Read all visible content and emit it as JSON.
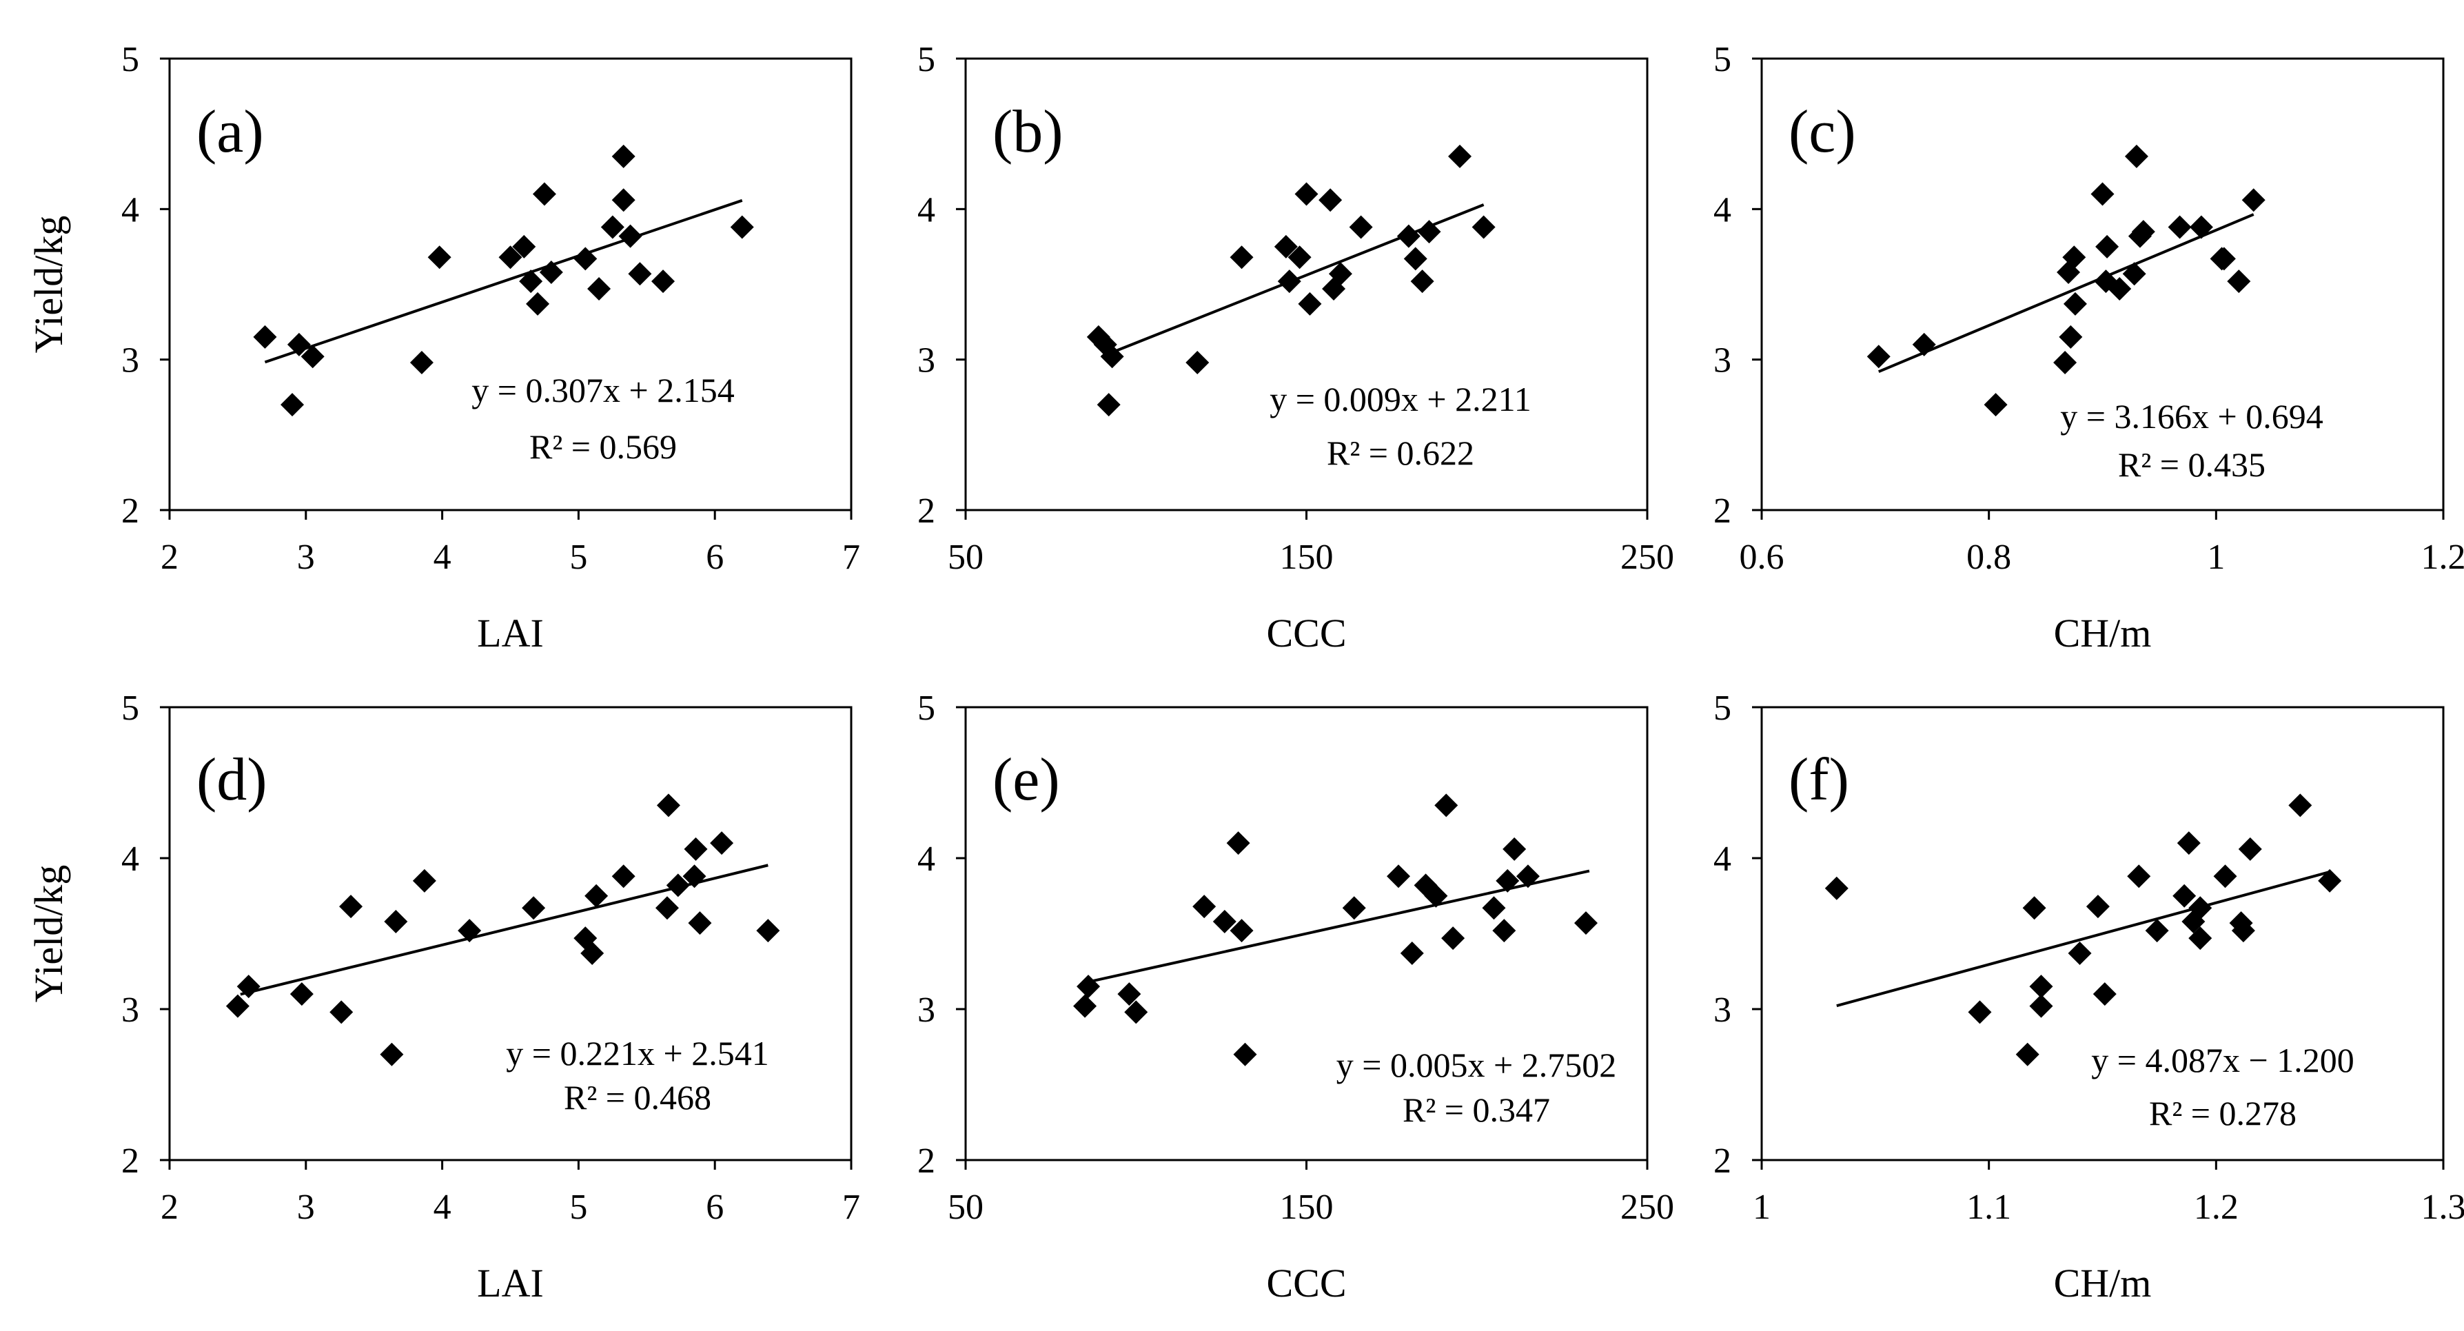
{
  "figure": {
    "y_axis_label": "Yield/kg",
    "colors": {
      "marker": "#000000",
      "trendline": "#000000",
      "frame": "#000000",
      "background": "#ffffff"
    }
  },
  "chart_data": [
    {
      "type": "scatter",
      "panel_label": "(a)",
      "xlabel": "LAI",
      "ylabel": "Yield/kg",
      "xlim": [
        2,
        7
      ],
      "ylim": [
        2,
        5
      ],
      "x_ticks": [
        "2",
        "3",
        "4",
        "5",
        "6",
        "7"
      ],
      "y_ticks": [
        "2",
        "3",
        "4",
        "5"
      ],
      "points": [
        {
          "x": 2.7,
          "y": 3.15
        },
        {
          "x": 2.9,
          "y": 2.7
        },
        {
          "x": 2.95,
          "y": 3.1
        },
        {
          "x": 3.05,
          "y": 3.02
        },
        {
          "x": 3.85,
          "y": 2.98
        },
        {
          "x": 3.98,
          "y": 3.68
        },
        {
          "x": 4.5,
          "y": 3.68
        },
        {
          "x": 4.6,
          "y": 3.75
        },
        {
          "x": 4.65,
          "y": 3.52
        },
        {
          "x": 4.7,
          "y": 3.37
        },
        {
          "x": 4.75,
          "y": 4.1
        },
        {
          "x": 4.8,
          "y": 3.58
        },
        {
          "x": 5.05,
          "y": 3.67
        },
        {
          "x": 5.15,
          "y": 3.47
        },
        {
          "x": 5.25,
          "y": 3.88
        },
        {
          "x": 5.33,
          "y": 4.35
        },
        {
          "x": 5.33,
          "y": 4.06
        },
        {
          "x": 5.38,
          "y": 3.82
        },
        {
          "x": 5.45,
          "y": 3.57
        },
        {
          "x": 5.62,
          "y": 3.52
        },
        {
          "x": 6.2,
          "y": 3.88
        }
      ],
      "trendline": {
        "x_start": 2.7,
        "x_end": 6.2,
        "slope": 0.307,
        "intercept": 2.154
      },
      "equation": "y = 0.307x + 2.154",
      "r_squared": "R² = 0.569"
    },
    {
      "type": "scatter",
      "panel_label": "(b)",
      "xlabel": "CCC",
      "ylabel": "Yield/kg",
      "xlim": [
        50,
        250
      ],
      "ylim": [
        2,
        5
      ],
      "x_ticks": [
        "50",
        "150",
        "250"
      ],
      "y_ticks": [
        "2",
        "3",
        "4",
        "5"
      ],
      "points": [
        {
          "x": 89,
          "y": 3.15
        },
        {
          "x": 91,
          "y": 3.1
        },
        {
          "x": 92,
          "y": 2.7
        },
        {
          "x": 93,
          "y": 3.02
        },
        {
          "x": 118,
          "y": 2.98
        },
        {
          "x": 131,
          "y": 3.68
        },
        {
          "x": 144,
          "y": 3.75
        },
        {
          "x": 145,
          "y": 3.52
        },
        {
          "x": 148,
          "y": 3.68
        },
        {
          "x": 150,
          "y": 4.1
        },
        {
          "x": 151,
          "y": 3.37
        },
        {
          "x": 157,
          "y": 4.06
        },
        {
          "x": 158,
          "y": 3.47
        },
        {
          "x": 160,
          "y": 3.57
        },
        {
          "x": 166,
          "y": 3.88
        },
        {
          "x": 180,
          "y": 3.82
        },
        {
          "x": 182,
          "y": 3.67
        },
        {
          "x": 184,
          "y": 3.52
        },
        {
          "x": 186,
          "y": 3.85
        },
        {
          "x": 195,
          "y": 4.35
        },
        {
          "x": 202,
          "y": 3.88
        }
      ],
      "trendline": {
        "x_start": 90,
        "x_end": 202,
        "slope": 0.009,
        "intercept": 2.211
      },
      "equation": "y = 0.009x + 2.211",
      "r_squared": "R² = 0.622"
    },
    {
      "type": "scatter",
      "panel_label": "(c)",
      "xlabel": "CH/m",
      "ylabel": "Yield/kg",
      "xlim": [
        0.6,
        1.2
      ],
      "ylim": [
        2,
        5
      ],
      "x_ticks": [
        "0.6",
        "0.8",
        "1",
        "1.2"
      ],
      "y_ticks": [
        "2",
        "3",
        "4",
        "5"
      ],
      "points": [
        {
          "x": 0.703,
          "y": 3.02
        },
        {
          "x": 0.743,
          "y": 3.1
        },
        {
          "x": 0.806,
          "y": 2.7
        },
        {
          "x": 0.867,
          "y": 2.98
        },
        {
          "x": 0.87,
          "y": 3.58
        },
        {
          "x": 0.872,
          "y": 3.15
        },
        {
          "x": 0.875,
          "y": 3.68
        },
        {
          "x": 0.876,
          "y": 3.37
        },
        {
          "x": 0.9,
          "y": 4.1
        },
        {
          "x": 0.903,
          "y": 3.52
        },
        {
          "x": 0.904,
          "y": 3.75
        },
        {
          "x": 0.915,
          "y": 3.47
        },
        {
          "x": 0.928,
          "y": 3.57
        },
        {
          "x": 0.93,
          "y": 4.35
        },
        {
          "x": 0.933,
          "y": 3.82
        },
        {
          "x": 0.936,
          "y": 3.85
        },
        {
          "x": 0.968,
          "y": 3.88
        },
        {
          "x": 0.987,
          "y": 3.88
        },
        {
          "x": 1.005,
          "y": 3.67
        },
        {
          "x": 1.007,
          "y": 3.67
        },
        {
          "x": 1.02,
          "y": 3.52
        },
        {
          "x": 1.033,
          "y": 4.06
        }
      ],
      "trendline": {
        "x_start": 0.703,
        "x_end": 1.033,
        "slope": 3.166,
        "intercept": 0.694
      },
      "equation": "y = 3.166x + 0.694",
      "r_squared": "R² = 0.435"
    },
    {
      "type": "scatter",
      "panel_label": "(d)",
      "xlabel": "LAI",
      "ylabel": "Yield/kg",
      "xlim": [
        2,
        7
      ],
      "ylim": [
        2,
        5
      ],
      "x_ticks": [
        "2",
        "3",
        "4",
        "5",
        "6",
        "7"
      ],
      "y_ticks": [
        "2",
        "3",
        "4",
        "5"
      ],
      "points": [
        {
          "x": 2.5,
          "y": 3.02
        },
        {
          "x": 2.58,
          "y": 3.15
        },
        {
          "x": 2.97,
          "y": 3.1
        },
        {
          "x": 3.26,
          "y": 2.98
        },
        {
          "x": 3.33,
          "y": 3.68
        },
        {
          "x": 3.63,
          "y": 2.7
        },
        {
          "x": 3.66,
          "y": 3.58
        },
        {
          "x": 3.87,
          "y": 3.85
        },
        {
          "x": 4.2,
          "y": 3.52
        },
        {
          "x": 4.67,
          "y": 3.67
        },
        {
          "x": 5.05,
          "y": 3.47
        },
        {
          "x": 5.1,
          "y": 3.37
        },
        {
          "x": 5.13,
          "y": 3.75
        },
        {
          "x": 5.33,
          "y": 3.88
        },
        {
          "x": 5.65,
          "y": 3.67
        },
        {
          "x": 5.66,
          "y": 4.35
        },
        {
          "x": 5.73,
          "y": 3.82
        },
        {
          "x": 5.85,
          "y": 3.88
        },
        {
          "x": 5.86,
          "y": 4.06
        },
        {
          "x": 5.89,
          "y": 3.57
        },
        {
          "x": 6.05,
          "y": 4.1
        },
        {
          "x": 6.39,
          "y": 3.52
        }
      ],
      "trendline": {
        "x_start": 2.52,
        "x_end": 6.39,
        "slope": 0.221,
        "intercept": 2.541
      },
      "equation": "y = 0.221x + 2.541",
      "r_squared": "R² = 0.468"
    },
    {
      "type": "scatter",
      "panel_label": "(e)",
      "xlabel": "CCC",
      "ylabel": "Yield/kg",
      "xlim": [
        50,
        250
      ],
      "ylim": [
        2,
        5
      ],
      "x_ticks": [
        "50",
        "150",
        "250"
      ],
      "y_ticks": [
        "2",
        "3",
        "4",
        "5"
      ],
      "points": [
        {
          "x": 85,
          "y": 3.02
        },
        {
          "x": 86,
          "y": 3.15
        },
        {
          "x": 98,
          "y": 3.1
        },
        {
          "x": 100,
          "y": 2.98
        },
        {
          "x": 120,
          "y": 3.68
        },
        {
          "x": 126,
          "y": 3.58
        },
        {
          "x": 130,
          "y": 4.1
        },
        {
          "x": 131,
          "y": 3.52
        },
        {
          "x": 132,
          "y": 2.7
        },
        {
          "x": 164,
          "y": 3.67
        },
        {
          "x": 177,
          "y": 3.88
        },
        {
          "x": 181,
          "y": 3.37
        },
        {
          "x": 185,
          "y": 3.82
        },
        {
          "x": 188,
          "y": 3.75
        },
        {
          "x": 191,
          "y": 4.35
        },
        {
          "x": 193,
          "y": 3.47
        },
        {
          "x": 205,
          "y": 3.67
        },
        {
          "x": 208,
          "y": 3.52
        },
        {
          "x": 209,
          "y": 3.85
        },
        {
          "x": 211,
          "y": 4.06
        },
        {
          "x": 215,
          "y": 3.88
        },
        {
          "x": 232,
          "y": 3.57
        }
      ],
      "trendline": {
        "x_start": 86,
        "x_end": 233,
        "slope": 0.005,
        "intercept": 2.7502
      },
      "equation": "y = 0.005x + 2.7502",
      "r_squared": "R² = 0.347"
    },
    {
      "type": "scatter",
      "panel_label": "(f)",
      "xlabel": "CH/m",
      "ylabel": "Yield/kg",
      "xlim": [
        1,
        1.3
      ],
      "ylim": [
        2,
        5
      ],
      "x_ticks": [
        "1",
        "1.1",
        "1.2",
        "1.3"
      ],
      "y_ticks": [
        "2",
        "3",
        "4",
        "5"
      ],
      "points": [
        {
          "x": 1.033,
          "y": 3.8
        },
        {
          "x": 1.096,
          "y": 2.98
        },
        {
          "x": 1.117,
          "y": 2.7
        },
        {
          "x": 1.12,
          "y": 3.67
        },
        {
          "x": 1.123,
          "y": 3.15
        },
        {
          "x": 1.123,
          "y": 3.02
        },
        {
          "x": 1.14,
          "y": 3.37
        },
        {
          "x": 1.148,
          "y": 3.68
        },
        {
          "x": 1.151,
          "y": 3.1
        },
        {
          "x": 1.166,
          "y": 3.88
        },
        {
          "x": 1.174,
          "y": 3.52
        },
        {
          "x": 1.186,
          "y": 3.75
        },
        {
          "x": 1.188,
          "y": 4.1
        },
        {
          "x": 1.19,
          "y": 3.58
        },
        {
          "x": 1.193,
          "y": 3.47
        },
        {
          "x": 1.193,
          "y": 3.67
        },
        {
          "x": 1.204,
          "y": 3.88
        },
        {
          "x": 1.211,
          "y": 3.57
        },
        {
          "x": 1.212,
          "y": 3.52
        },
        {
          "x": 1.215,
          "y": 4.06
        },
        {
          "x": 1.237,
          "y": 4.35
        },
        {
          "x": 1.25,
          "y": 3.85
        }
      ],
      "trendline": {
        "x_start": 1.033,
        "x_end": 1.25,
        "slope": 4.087,
        "intercept": -1.2
      },
      "equation": "y = 4.087x − 1.200",
      "r_squared": "R² = 0.278"
    }
  ]
}
